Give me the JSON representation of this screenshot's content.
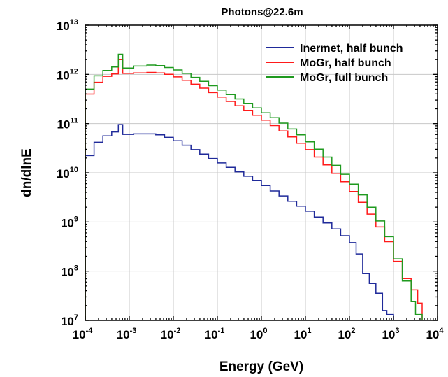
{
  "chart_data": {
    "type": "line",
    "title": "Photons@22.6m",
    "xlabel": "Energy (GeV)",
    "ylabel": "dn/dlnE",
    "xscale": "log",
    "yscale": "log",
    "xlim": [
      0.0001,
      10000
    ],
    "ylim": [
      10000000,
      10000000000000
    ],
    "xticks": [
      {
        "base": "10",
        "exp": "-4"
      },
      {
        "base": "10",
        "exp": "-3"
      },
      {
        "base": "10",
        "exp": "-2"
      },
      {
        "base": "10",
        "exp": "-1"
      },
      {
        "base": "10",
        "exp": "0"
      },
      {
        "base": "10",
        "exp": "1"
      },
      {
        "base": "10",
        "exp": "2"
      },
      {
        "base": "10",
        "exp": "3"
      },
      {
        "base": "10",
        "exp": "4"
      }
    ],
    "yticks": [
      {
        "base": "10",
        "exp": "7"
      },
      {
        "base": "10",
        "exp": "8"
      },
      {
        "base": "10",
        "exp": "9"
      },
      {
        "base": "10",
        "exp": "10"
      },
      {
        "base": "10",
        "exp": "11"
      },
      {
        "base": "10",
        "exp": "12"
      },
      {
        "base": "10",
        "exp": "13"
      }
    ],
    "grid": true,
    "legend_position": "top-right",
    "step_style": "histogram",
    "series": [
      {
        "name": "Inermet, half bunch",
        "color": "#1f2a9a",
        "points": [
          [
            -4.0,
            10.35
          ],
          [
            -3.8,
            10.62
          ],
          [
            -3.6,
            10.75
          ],
          [
            -3.4,
            10.83
          ],
          [
            -3.25,
            10.98
          ],
          [
            -3.15,
            10.78
          ],
          [
            -2.9,
            10.79
          ],
          [
            -2.6,
            10.79
          ],
          [
            -2.4,
            10.77
          ],
          [
            -2.2,
            10.72
          ],
          [
            -2.0,
            10.65
          ],
          [
            -1.8,
            10.56
          ],
          [
            -1.6,
            10.47
          ],
          [
            -1.4,
            10.38
          ],
          [
            -1.2,
            10.29
          ],
          [
            -1.0,
            10.2
          ],
          [
            -0.8,
            10.11
          ],
          [
            -0.6,
            10.02
          ],
          [
            -0.4,
            9.93
          ],
          [
            -0.2,
            9.84
          ],
          [
            0.0,
            9.74
          ],
          [
            0.2,
            9.63
          ],
          [
            0.4,
            9.53
          ],
          [
            0.6,
            9.42
          ],
          [
            0.8,
            9.32
          ],
          [
            1.0,
            9.22
          ],
          [
            1.2,
            9.1
          ],
          [
            1.4,
            8.98
          ],
          [
            1.6,
            8.86
          ],
          [
            1.8,
            8.72
          ],
          [
            2.0,
            8.58
          ],
          [
            2.15,
            8.35
          ],
          [
            2.3,
            7.95
          ],
          [
            2.45,
            7.75
          ],
          [
            2.6,
            7.55
          ],
          [
            2.75,
            7.2
          ],
          [
            2.85,
            7.12
          ],
          [
            3.0,
            7.0
          ]
        ]
      },
      {
        "name": "MoGr, half bunch",
        "color": "#ff1a1a",
        "points": [
          [
            -4.0,
            11.6
          ],
          [
            -3.8,
            11.84
          ],
          [
            -3.6,
            11.96
          ],
          [
            -3.4,
            12.01
          ],
          [
            -3.25,
            12.3
          ],
          [
            -3.15,
            12.02
          ],
          [
            -2.9,
            12.03
          ],
          [
            -2.6,
            12.04
          ],
          [
            -2.4,
            12.03
          ],
          [
            -2.2,
            12.0
          ],
          [
            -2.0,
            11.95
          ],
          [
            -1.8,
            11.88
          ],
          [
            -1.6,
            11.8
          ],
          [
            -1.4,
            11.72
          ],
          [
            -1.2,
            11.63
          ],
          [
            -1.0,
            11.54
          ],
          [
            -0.8,
            11.45
          ],
          [
            -0.6,
            11.36
          ],
          [
            -0.4,
            11.27
          ],
          [
            -0.2,
            11.17
          ],
          [
            0.0,
            11.07
          ],
          [
            0.2,
            10.96
          ],
          [
            0.4,
            10.85
          ],
          [
            0.6,
            10.73
          ],
          [
            0.8,
            10.6
          ],
          [
            1.0,
            10.47
          ],
          [
            1.2,
            10.32
          ],
          [
            1.4,
            10.16
          ],
          [
            1.6,
            9.99
          ],
          [
            1.8,
            9.82
          ],
          [
            2.0,
            9.62
          ],
          [
            2.2,
            9.4
          ],
          [
            2.4,
            9.16
          ],
          [
            2.6,
            8.9
          ],
          [
            2.8,
            8.6
          ],
          [
            3.0,
            8.2
          ],
          [
            3.2,
            7.85
          ],
          [
            3.4,
            7.62
          ],
          [
            3.55,
            7.35
          ],
          [
            3.65,
            7.0
          ]
        ]
      },
      {
        "name": "MoGr, full bunch",
        "color": "#1f9a1f",
        "points": [
          [
            -4.0,
            11.7
          ],
          [
            -3.8,
            11.97
          ],
          [
            -3.6,
            12.08
          ],
          [
            -3.4,
            12.15
          ],
          [
            -3.25,
            12.41
          ],
          [
            -3.15,
            12.13
          ],
          [
            -2.9,
            12.17
          ],
          [
            -2.6,
            12.19
          ],
          [
            -2.4,
            12.18
          ],
          [
            -2.2,
            12.14
          ],
          [
            -2.0,
            12.09
          ],
          [
            -1.8,
            12.02
          ],
          [
            -1.6,
            11.94
          ],
          [
            -1.4,
            11.86
          ],
          [
            -1.2,
            11.77
          ],
          [
            -1.0,
            11.68
          ],
          [
            -0.8,
            11.59
          ],
          [
            -0.6,
            11.5
          ],
          [
            -0.4,
            11.41
          ],
          [
            -0.2,
            11.32
          ],
          [
            0.0,
            11.22
          ],
          [
            0.2,
            11.12
          ],
          [
            0.4,
            11.01
          ],
          [
            0.6,
            10.89
          ],
          [
            0.8,
            10.77
          ],
          [
            1.0,
            10.63
          ],
          [
            1.2,
            10.48
          ],
          [
            1.4,
            10.32
          ],
          [
            1.6,
            10.15
          ],
          [
            1.8,
            9.97
          ],
          [
            2.0,
            9.77
          ],
          [
            2.2,
            9.55
          ],
          [
            2.4,
            9.3
          ],
          [
            2.6,
            9.02
          ],
          [
            2.8,
            8.7
          ],
          [
            3.0,
            8.25
          ],
          [
            3.2,
            7.8
          ],
          [
            3.4,
            7.38
          ],
          [
            3.5,
            7.12
          ],
          [
            3.65,
            7.0
          ]
        ]
      }
    ]
  }
}
